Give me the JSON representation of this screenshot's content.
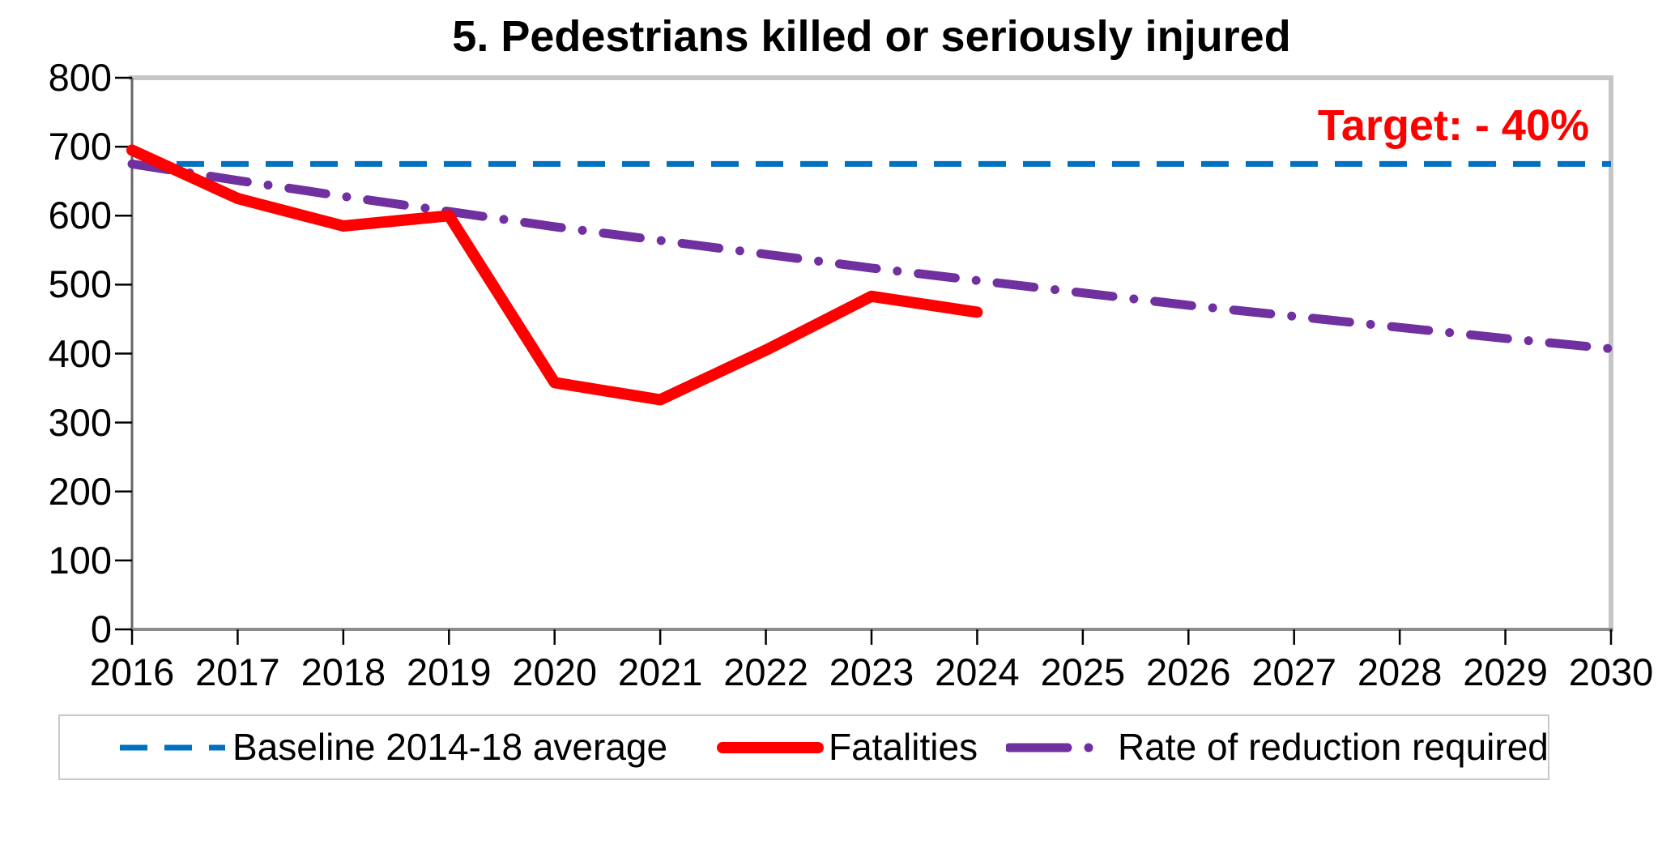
{
  "chart": {
    "title": "5. Pedestrians killed or seriously injured",
    "annotation": {
      "text": "Target: - 40%",
      "color": "#FF0000"
    },
    "chart_data": {
      "type": "line",
      "x": [
        2016,
        2017,
        2018,
        2019,
        2020,
        2021,
        2022,
        2023,
        2024,
        2025,
        2026,
        2027,
        2028,
        2029,
        2030
      ],
      "ylim": [
        0,
        800
      ],
      "y_ticks": [
        0,
        100,
        200,
        300,
        400,
        500,
        600,
        700,
        800
      ],
      "grid": false,
      "legend_position": "bottom",
      "series": [
        {
          "name": "Baseline 2014-18 average",
          "color": "#0070C0",
          "line_style": "dashed",
          "width": 7,
          "values": [
            675,
            675,
            675,
            675,
            675,
            675,
            675,
            675,
            675,
            675,
            675,
            675,
            675,
            675,
            675
          ]
        },
        {
          "name": "Fatalities",
          "color": "#FF0000",
          "line_style": "solid",
          "width": 14,
          "values": [
            695,
            625,
            585,
            600,
            358,
            333,
            405,
            483,
            460,
            null,
            null,
            null,
            null,
            null,
            null
          ]
        },
        {
          "name": "Rate of reduction required",
          "color": "#7030A0",
          "line_style": "dash-dot",
          "width": 11,
          "values": [
            675,
            651,
            628,
            606,
            584,
            564,
            544,
            524,
            506,
            488,
            470,
            454,
            438,
            422,
            407
          ]
        }
      ]
    }
  }
}
